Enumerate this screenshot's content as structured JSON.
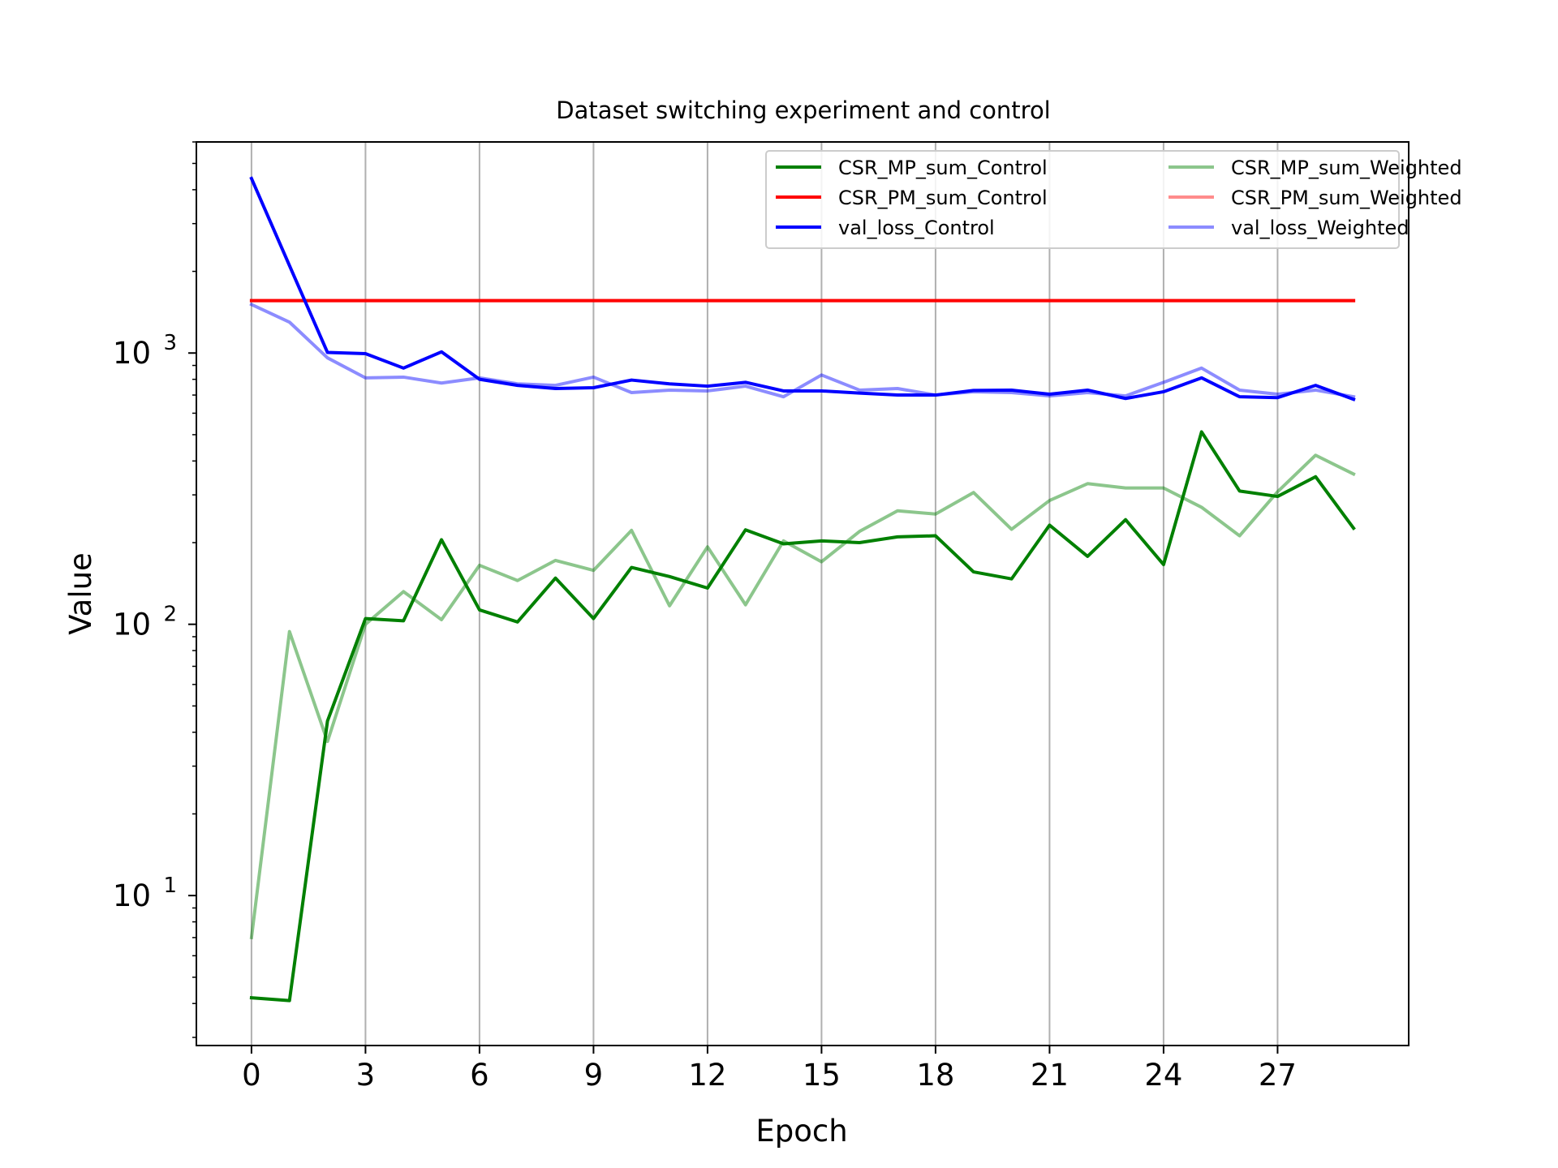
{
  "chart_data": {
    "type": "line",
    "title": "Dataset switching experiment and control",
    "xlabel": "Epoch",
    "ylabel": "Value",
    "yscale": "log",
    "xlim": [
      -1.45,
      30.45
    ],
    "ylim": [
      2.8,
      6000
    ],
    "xticks": [
      "0",
      "3",
      "6",
      "9",
      "12",
      "15",
      "18",
      "21",
      "24",
      "27"
    ],
    "yticks": [
      {
        "base": "10",
        "exp": "1",
        "value": 10
      },
      {
        "base": "10",
        "exp": "2",
        "value": 100
      },
      {
        "base": "10",
        "exp": "3",
        "value": 1000
      }
    ],
    "grid": "vertical",
    "legend_placement": "top-right",
    "x": [
      0,
      1,
      2,
      3,
      4,
      5,
      6,
      7,
      8,
      9,
      10,
      11,
      12,
      13,
      14,
      15,
      16,
      17,
      18,
      19,
      20,
      21,
      22,
      23,
      24,
      25,
      26,
      27,
      28,
      29
    ],
    "series": [
      {
        "name": "CSR_MP_sum_Control",
        "color": "#008000",
        "opacity": 1.0,
        "values": [
          4.2,
          4.1,
          44,
          105,
          103,
          205,
          113,
          102,
          148,
          105,
          162,
          150,
          136,
          223,
          198,
          203,
          200,
          210,
          212,
          156,
          147,
          232,
          178,
          243,
          166,
          512,
          310,
          296,
          350,
          226
        ]
      },
      {
        "name": "CSR_PM_sum_Control",
        "color": "#ff0000",
        "opacity": 1.0,
        "values": [
          1560,
          1560,
          1560,
          1560,
          1560,
          1560,
          1560,
          1560,
          1560,
          1560,
          1560,
          1560,
          1560,
          1560,
          1560,
          1560,
          1560,
          1560,
          1560,
          1560,
          1560,
          1560,
          1560,
          1560,
          1560,
          1560,
          1560,
          1560,
          1560,
          1560
        ]
      },
      {
        "name": "val_loss_Control",
        "color": "#0000ff",
        "opacity": 1.0,
        "values": [
          4400,
          2100,
          1005,
          995,
          880,
          1010,
          800,
          760,
          740,
          745,
          795,
          770,
          755,
          780,
          725,
          725,
          712,
          700,
          700,
          728,
          730,
          705,
          730,
          680,
          720,
          810,
          690,
          685,
          760,
          675
        ]
      },
      {
        "name": "CSR_MP_sum_Weighted",
        "color": "#008000",
        "opacity": 0.45,
        "values": [
          7.0,
          94,
          37,
          100,
          132,
          104,
          165,
          145,
          172,
          158,
          222,
          117,
          193,
          118,
          203,
          170,
          220,
          262,
          255,
          306,
          224,
          286,
          330,
          318,
          318,
          270,
          212,
          308,
          420,
          358
        ]
      },
      {
        "name": "CSR_PM_sum_Weighted",
        "color": "#ff0000",
        "opacity": 0.45,
        "values": [
          1560,
          1560,
          1560,
          1560,
          1560,
          1560,
          1560,
          1560,
          1560,
          1560,
          1560,
          1560,
          1560,
          1560,
          1560,
          1560,
          1560,
          1560,
          1560,
          1560,
          1560,
          1560,
          1560,
          1560,
          1560,
          1560,
          1560,
          1560,
          1560,
          1560
        ]
      },
      {
        "name": "val_loss_Weighted",
        "color": "#0000ff",
        "opacity": 0.45,
        "values": [
          1510,
          1300,
          960,
          810,
          815,
          775,
          810,
          770,
          760,
          815,
          715,
          730,
          725,
          755,
          690,
          830,
          730,
          740,
          700,
          720,
          715,
          695,
          715,
          695,
          780,
          880,
          730,
          705,
          730,
          690
        ]
      }
    ]
  }
}
